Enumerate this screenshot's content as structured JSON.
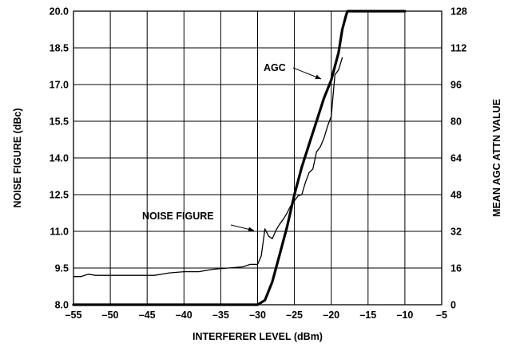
{
  "chart_data": {
    "type": "line",
    "xlabel": "INTERFERER LEVEL (dBm)",
    "ylabel": "NOISE FIGURE (dBc)",
    "y2label": "MEAN AGC ATTN VALUE",
    "xlim": [
      -55,
      -5
    ],
    "ylim": [
      8.0,
      20.0
    ],
    "y2lim": [
      0,
      128
    ],
    "x_ticks": [
      "–55",
      "–50",
      "–45",
      "–40",
      "–35",
      "–30",
      "–25",
      "–20",
      "–15",
      "–10",
      "–5"
    ],
    "y_ticks": [
      "8.0",
      "9.5",
      "11.0",
      "12.5",
      "14.0",
      "15.5",
      "17.0",
      "18.5",
      "20.0"
    ],
    "y2_ticks": [
      "0",
      "16",
      "32",
      "48",
      "64",
      "80",
      "96",
      "112",
      "128"
    ],
    "grid": true,
    "series": [
      {
        "name": "NOISE FIGURE",
        "axis": "left",
        "color": "#000000",
        "line_weight": "thin",
        "x": [
          -55,
          -54,
          -53,
          -52,
          -51,
          -50,
          -48,
          -46,
          -44,
          -42,
          -40,
          -38,
          -36,
          -34,
          -32,
          -31,
          -30,
          -29.5,
          -29,
          -28.5,
          -28,
          -27.5,
          -27,
          -26.5,
          -26,
          -25.5,
          -25,
          -24.5,
          -24,
          -23.5,
          -23,
          -22.5,
          -22,
          -21.5,
          -21,
          -20.5,
          -20,
          -19.5,
          -19,
          -18.5
        ],
        "values": [
          9.15,
          9.15,
          9.25,
          9.2,
          9.2,
          9.2,
          9.2,
          9.2,
          9.2,
          9.3,
          9.35,
          9.35,
          9.45,
          9.5,
          9.55,
          9.65,
          9.65,
          10.0,
          11.1,
          10.8,
          10.7,
          11.05,
          11.3,
          11.5,
          11.75,
          12.05,
          12.25,
          12.45,
          12.5,
          13.0,
          13.4,
          13.55,
          14.25,
          14.45,
          14.8,
          15.3,
          15.7,
          17.4,
          17.6,
          18.1
        ]
      },
      {
        "name": "AGC",
        "axis": "right",
        "color": "#000000",
        "line_weight": "thick",
        "x": [
          -55,
          -30,
          -29,
          -28,
          -27,
          -26,
          -25,
          -24,
          -23,
          -22,
          -21,
          -20,
          -19,
          -18.5,
          -18,
          -17.8,
          -17.5,
          -10
        ],
        "values": [
          0,
          0,
          2,
          10,
          22,
          34,
          48,
          60,
          70,
          80,
          90,
          98,
          110,
          120,
          126,
          128,
          128,
          128
        ]
      }
    ],
    "annotations": [
      {
        "text": "AGC",
        "points_to": "AGC"
      },
      {
        "text": "NOISE FIGURE",
        "points_to": "NOISE FIGURE"
      }
    ]
  }
}
